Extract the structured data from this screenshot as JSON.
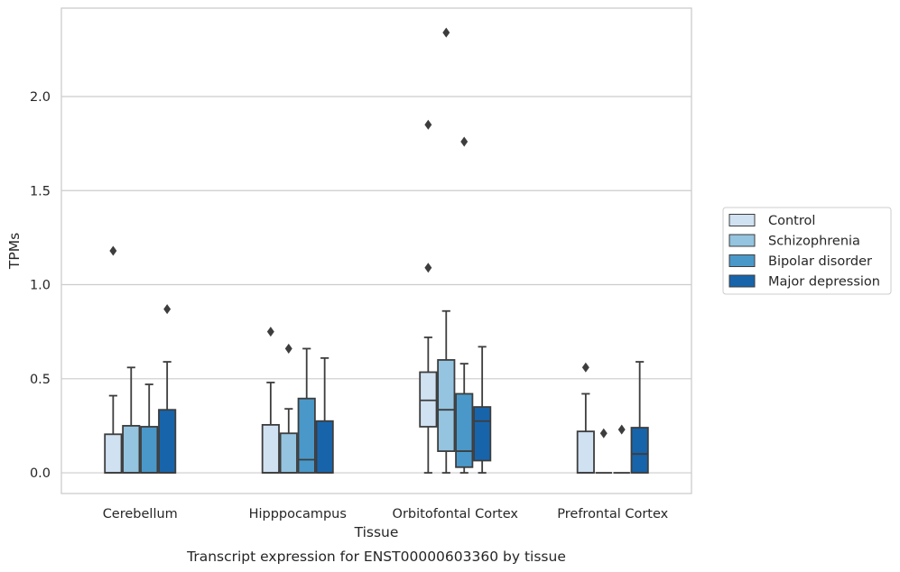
{
  "chart_data": {
    "type": "boxplot",
    "title": "",
    "caption": "Transcript expression for ENST00000603360 by tissue",
    "xlabel": "Tissue",
    "ylabel": "TPMs",
    "ylim": [
      -0.11,
      2.47
    ],
    "yticks": [
      0.0,
      0.5,
      1.0,
      1.5,
      2.0
    ],
    "ytick_labels": [
      "0.0",
      "0.5",
      "1.0",
      "1.5",
      "2.0"
    ],
    "grid": "horizontal",
    "legend_position": "right",
    "categories": [
      "Cerebellum",
      "Hipppocampus",
      "Orbitofontal Cortex",
      "Prefrontal Cortex"
    ],
    "series": [
      {
        "name": "Control",
        "color": "#d0e1f2",
        "boxes": [
          {
            "whislo": 0.0,
            "q1": 0.0,
            "med": 0.0,
            "q3": 0.205,
            "whishi": 0.41,
            "fliers": [
              1.18
            ]
          },
          {
            "whislo": 0.0,
            "q1": 0.0,
            "med": 0.0,
            "q3": 0.255,
            "whishi": 0.48,
            "fliers": [
              0.75
            ]
          },
          {
            "whislo": 0.0,
            "q1": 0.245,
            "med": 0.385,
            "q3": 0.535,
            "whishi": 0.72,
            "fliers": [
              1.09,
              1.85
            ]
          },
          {
            "whislo": 0.0,
            "q1": 0.0,
            "med": 0.0,
            "q3": 0.22,
            "whishi": 0.42,
            "fliers": [
              0.56
            ]
          }
        ]
      },
      {
        "name": "Schizophrenia",
        "color": "#94c4df",
        "boxes": [
          {
            "whislo": 0.0,
            "q1": 0.0,
            "med": 0.0,
            "q3": 0.25,
            "whishi": 0.56,
            "fliers": []
          },
          {
            "whislo": 0.0,
            "q1": 0.0,
            "med": 0.0,
            "q3": 0.21,
            "whishi": 0.34,
            "fliers": [
              0.66
            ]
          },
          {
            "whislo": 0.0,
            "q1": 0.115,
            "med": 0.335,
            "q3": 0.6,
            "whishi": 0.86,
            "fliers": [
              2.34
            ]
          },
          {
            "whislo": 0.0,
            "q1": 0.0,
            "med": 0.0,
            "q3": 0.0,
            "whishi": 0.0,
            "fliers": [
              0.21
            ]
          }
        ]
      },
      {
        "name": "Bipolar disorder",
        "color": "#4a98c9",
        "boxes": [
          {
            "whislo": 0.0,
            "q1": 0.0,
            "med": 0.0,
            "q3": 0.245,
            "whishi": 0.47,
            "fliers": []
          },
          {
            "whislo": 0.0,
            "q1": 0.0,
            "med": 0.07,
            "q3": 0.395,
            "whishi": 0.66,
            "fliers": []
          },
          {
            "whislo": 0.0,
            "q1": 0.03,
            "med": 0.115,
            "q3": 0.42,
            "whishi": 0.58,
            "fliers": [
              1.76
            ]
          },
          {
            "whislo": 0.0,
            "q1": 0.0,
            "med": 0.0,
            "q3": 0.0,
            "whishi": 0.0,
            "fliers": [
              0.23
            ]
          }
        ]
      },
      {
        "name": "Major depression",
        "color": "#1764ab",
        "boxes": [
          {
            "whislo": 0.0,
            "q1": 0.0,
            "med": 0.0,
            "q3": 0.335,
            "whishi": 0.59,
            "fliers": [
              0.87
            ]
          },
          {
            "whislo": 0.0,
            "q1": 0.0,
            "med": 0.0,
            "q3": 0.275,
            "whishi": 0.61,
            "fliers": []
          },
          {
            "whislo": 0.0,
            "q1": 0.065,
            "med": 0.275,
            "q3": 0.35,
            "whishi": 0.67,
            "fliers": []
          },
          {
            "whislo": 0.0,
            "q1": 0.0,
            "med": 0.1,
            "q3": 0.24,
            "whishi": 0.59,
            "fliers": []
          }
        ]
      }
    ]
  }
}
